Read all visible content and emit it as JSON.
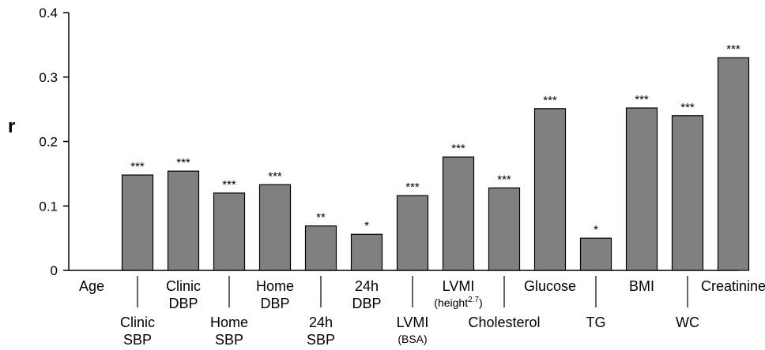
{
  "chart_data": {
    "type": "bar",
    "ylabel": "r",
    "ylim": [
      0,
      0.4
    ],
    "yticks": [
      "0",
      "0.1",
      "0.2",
      "0.3",
      "0.4"
    ],
    "grid": false,
    "bar_color": "#808080",
    "categories": [
      {
        "label": [
          "Age"
        ],
        "value": 0,
        "sig": ""
      },
      {
        "label": [
          "Clinic",
          "SBP"
        ],
        "value": 0.148,
        "sig": "***"
      },
      {
        "label": [
          "Clinic",
          "DBP"
        ],
        "value": 0.154,
        "sig": "***"
      },
      {
        "label": [
          "Home",
          "SBP"
        ],
        "value": 0.12,
        "sig": "***"
      },
      {
        "label": [
          "Home",
          "DBP"
        ],
        "value": 0.133,
        "sig": "***"
      },
      {
        "label": [
          "24h",
          "SBP"
        ],
        "value": 0.069,
        "sig": "**"
      },
      {
        "label": [
          "24h",
          "DBP"
        ],
        "value": 0.056,
        "sig": "*"
      },
      {
        "label": [
          "LVMI"
        ],
        "sublabel": "(BSA)",
        "value": 0.116,
        "sig": "***"
      },
      {
        "label": [
          "LVMI"
        ],
        "sublabel": "(height",
        "sublabel_sup": "2.7",
        "sublabel_end": ")",
        "value": 0.176,
        "sig": "***"
      },
      {
        "label": [
          "Cholesterol"
        ],
        "value": 0.128,
        "sig": "***"
      },
      {
        "label": [
          "Glucose"
        ],
        "value": 0.251,
        "sig": "***"
      },
      {
        "label": [
          "TG"
        ],
        "value": 0.05,
        "sig": "*"
      },
      {
        "label": [
          "BMI"
        ],
        "value": 0.252,
        "sig": "***"
      },
      {
        "label": [
          "WC"
        ],
        "value": 0.24,
        "sig": "***"
      },
      {
        "label": [
          "Creatinine"
        ],
        "value": 0.33,
        "sig": "***"
      }
    ]
  }
}
